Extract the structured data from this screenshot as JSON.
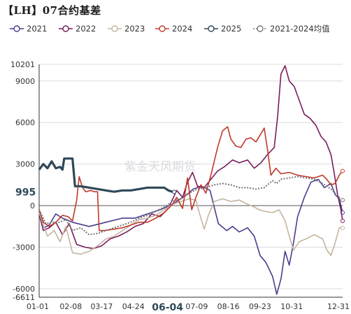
{
  "chart_data": {
    "type": "line",
    "title": "【LH】07合约基差",
    "watermark": "紫金天风期货",
    "ylim": [
      -6611,
      10201
    ],
    "y_ticks": [
      10201,
      9000,
      6000,
      3000,
      0,
      -3000,
      -6000,
      -6611
    ],
    "y_tick_labels": [
      "10201",
      "9000",
      "6000",
      "3000",
      "0",
      "-3000",
      "-6000",
      "-6611"
    ],
    "highlight_y_label": "995",
    "highlight_y_value": 995,
    "x_ticks": [
      0,
      38,
      75,
      113,
      154,
      189,
      227,
      265,
      303,
      364
    ],
    "x_tick_labels": [
      "01-01",
      "02-08",
      "03-17",
      "04-24",
      "06-04",
      "07-09",
      "08-16",
      "09-23",
      "10-31",
      "12-31"
    ],
    "x_unit": "day of year",
    "highlight_x_label": "06-04",
    "grid": "horizontal",
    "legend_position": "top",
    "series": [
      {
        "name": "2021",
        "color": "#4b3d8f",
        "points": [
          [
            0,
            -400
          ],
          [
            6,
            -1600
          ],
          [
            12,
            -1400
          ],
          [
            20,
            -600
          ],
          [
            28,
            -900
          ],
          [
            40,
            -1200
          ],
          [
            60,
            -1500
          ],
          [
            80,
            -1200
          ],
          [
            100,
            -900
          ],
          [
            115,
            -900
          ],
          [
            130,
            -600
          ],
          [
            145,
            -300
          ],
          [
            160,
            100
          ],
          [
            175,
            700
          ],
          [
            185,
            1200
          ],
          [
            195,
            1400
          ],
          [
            205,
            1100
          ],
          [
            215,
            -1300
          ],
          [
            225,
            -1800
          ],
          [
            232,
            -1500
          ],
          [
            240,
            -1900
          ],
          [
            250,
            -1600
          ],
          [
            258,
            -2200
          ],
          [
            265,
            -3600
          ],
          [
            272,
            -4100
          ],
          [
            280,
            -5100
          ],
          [
            285,
            -6400
          ],
          [
            290,
            -5300
          ],
          [
            295,
            -3300
          ],
          [
            300,
            -4300
          ],
          [
            305,
            -2700
          ],
          [
            310,
            -800
          ],
          [
            318,
            600
          ],
          [
            326,
            1700
          ],
          [
            335,
            1900
          ],
          [
            342,
            1300
          ],
          [
            350,
            1600
          ],
          [
            355,
            800
          ],
          [
            360,
            500
          ],
          [
            364,
            -500
          ]
        ]
      },
      {
        "name": "2022",
        "color": "#7a1c5c",
        "points": [
          [
            0,
            -600
          ],
          [
            5,
            -1800
          ],
          [
            12,
            -1600
          ],
          [
            20,
            -1200
          ],
          [
            28,
            -2100
          ],
          [
            36,
            -1300
          ],
          [
            45,
            -2800
          ],
          [
            55,
            -3000
          ],
          [
            65,
            -3100
          ],
          [
            75,
            -2900
          ],
          [
            85,
            -2400
          ],
          [
            95,
            -2200
          ],
          [
            105,
            -1900
          ],
          [
            115,
            -1500
          ],
          [
            125,
            -1300
          ],
          [
            135,
            -600
          ],
          [
            145,
            -800
          ],
          [
            155,
            -200
          ],
          [
            165,
            1100
          ],
          [
            172,
            600
          ],
          [
            178,
            1700
          ],
          [
            184,
            2400
          ],
          [
            190,
            1400
          ],
          [
            198,
            1300
          ],
          [
            206,
            1900
          ],
          [
            214,
            2500
          ],
          [
            222,
            2800
          ],
          [
            232,
            3300
          ],
          [
            240,
            3100
          ],
          [
            250,
            3300
          ],
          [
            258,
            2700
          ],
          [
            266,
            3100
          ],
          [
            274,
            3700
          ],
          [
            282,
            4200
          ],
          [
            286,
            6400
          ],
          [
            290,
            9500
          ],
          [
            295,
            10100
          ],
          [
            300,
            9000
          ],
          [
            306,
            8600
          ],
          [
            312,
            7600
          ],
          [
            318,
            6600
          ],
          [
            325,
            6300
          ],
          [
            332,
            5800
          ],
          [
            338,
            5000
          ],
          [
            344,
            4600
          ],
          [
            350,
            3700
          ],
          [
            354,
            2300
          ],
          [
            358,
            800
          ],
          [
            362,
            -300
          ],
          [
            364,
            -1100
          ]
        ]
      },
      {
        "name": "2023",
        "color": "#c7b49f",
        "points": [
          [
            0,
            -500
          ],
          [
            5,
            -1400
          ],
          [
            10,
            -2200
          ],
          [
            18,
            -1800
          ],
          [
            25,
            -2600
          ],
          [
            32,
            -1500
          ],
          [
            40,
            -3400
          ],
          [
            50,
            -3500
          ],
          [
            60,
            -3300
          ],
          [
            70,
            -2900
          ],
          [
            80,
            -2400
          ],
          [
            90,
            -2200
          ],
          [
            100,
            -1800
          ],
          [
            110,
            -1400
          ],
          [
            120,
            -1000
          ],
          [
            130,
            -900
          ],
          [
            140,
            -700
          ],
          [
            150,
            -300
          ],
          [
            160,
            100
          ],
          [
            170,
            300
          ],
          [
            180,
            500
          ],
          [
            188,
            400
          ],
          [
            192,
            -500
          ],
          [
            198,
            -1700
          ],
          [
            203,
            -700
          ],
          [
            210,
            300
          ],
          [
            220,
            500
          ],
          [
            230,
            300
          ],
          [
            240,
            400
          ],
          [
            250,
            100
          ],
          [
            258,
            -100
          ],
          [
            264,
            -300
          ],
          [
            270,
            -400
          ],
          [
            280,
            -500
          ],
          [
            288,
            -300
          ],
          [
            295,
            -1100
          ],
          [
            300,
            -2200
          ],
          [
            305,
            -3200
          ],
          [
            312,
            -2600
          ],
          [
            320,
            -2400
          ],
          [
            330,
            -2100
          ],
          [
            340,
            -2400
          ],
          [
            345,
            -3200
          ],
          [
            350,
            -3600
          ],
          [
            355,
            -2700
          ],
          [
            360,
            -1600
          ],
          [
            364,
            -1600
          ]
        ]
      },
      {
        "name": "2024",
        "color": "#c0392b",
        "points": [
          [
            0,
            -300
          ],
          [
            5,
            -1200
          ],
          [
            12,
            -1500
          ],
          [
            20,
            -1200
          ],
          [
            28,
            -700
          ],
          [
            35,
            -800
          ],
          [
            40,
            -1100
          ],
          [
            45,
            400
          ],
          [
            48,
            2100
          ],
          [
            52,
            1300
          ],
          [
            56,
            1000
          ],
          [
            62,
            1100
          ],
          [
            66,
            1000
          ],
          [
            70,
            1000
          ],
          [
            72,
            -1800
          ],
          [
            78,
            -1800
          ],
          [
            90,
            -1700
          ],
          [
            100,
            -1600
          ],
          [
            110,
            -1400
          ],
          [
            120,
            -1200
          ],
          [
            130,
            -1200
          ],
          [
            140,
            -900
          ],
          [
            150,
            -500
          ],
          [
            160,
            100
          ],
          [
            165,
            600
          ],
          [
            172,
            -200
          ],
          [
            178,
            2000
          ],
          [
            183,
            -300
          ],
          [
            188,
            600
          ],
          [
            194,
            1500
          ],
          [
            200,
            900
          ],
          [
            206,
            2200
          ],
          [
            214,
            4200
          ],
          [
            220,
            5400
          ],
          [
            226,
            5700
          ],
          [
            230,
            4800
          ],
          [
            236,
            4300
          ],
          [
            242,
            4200
          ],
          [
            248,
            4800
          ],
          [
            254,
            4900
          ],
          [
            260,
            4600
          ],
          [
            266,
            5200
          ],
          [
            270,
            5600
          ],
          [
            274,
            4000
          ],
          [
            278,
            2200
          ],
          [
            284,
            2700
          ],
          [
            290,
            2300
          ],
          [
            300,
            2400
          ],
          [
            310,
            2200
          ],
          [
            320,
            2100
          ],
          [
            330,
            2000
          ],
          [
            340,
            2200
          ],
          [
            345,
            1900
          ],
          [
            350,
            1500
          ],
          [
            355,
            1600
          ],
          [
            360,
            2200
          ],
          [
            364,
            2500
          ]
        ]
      },
      {
        "name": "2025",
        "color": "#2f4858",
        "points": [
          [
            0,
            2600
          ],
          [
            5,
            3000
          ],
          [
            10,
            2700
          ],
          [
            15,
            3200
          ],
          [
            20,
            2700
          ],
          [
            25,
            2800
          ],
          [
            28,
            2600
          ],
          [
            30,
            3400
          ],
          [
            36,
            3400
          ],
          [
            40,
            3400
          ],
          [
            43,
            1400
          ],
          [
            50,
            1400
          ],
          [
            60,
            1300
          ],
          [
            70,
            1200
          ],
          [
            80,
            1100
          ],
          [
            90,
            1000
          ],
          [
            100,
            1100
          ],
          [
            110,
            1100
          ],
          [
            120,
            1200
          ],
          [
            130,
            1300
          ],
          [
            140,
            1300
          ],
          [
            150,
            1300
          ],
          [
            155,
            1100
          ],
          [
            160,
            1000
          ],
          [
            162,
            995
          ]
        ]
      },
      {
        "name": "2021-2024均值",
        "color": "#777777",
        "dashed": true,
        "points": [
          [
            0,
            -300
          ],
          [
            8,
            -1300
          ],
          [
            16,
            -1200
          ],
          [
            24,
            -1200
          ],
          [
            32,
            -1000
          ],
          [
            40,
            -1800
          ],
          [
            50,
            -1600
          ],
          [
            60,
            -2100
          ],
          [
            70,
            -2000
          ],
          [
            80,
            -1800
          ],
          [
            90,
            -1600
          ],
          [
            100,
            -1400
          ],
          [
            110,
            -1200
          ],
          [
            120,
            -900
          ],
          [
            130,
            -700
          ],
          [
            140,
            -400
          ],
          [
            150,
            -100
          ],
          [
            160,
            300
          ],
          [
            170,
            500
          ],
          [
            180,
            900
          ],
          [
            190,
            1200
          ],
          [
            200,
            1300
          ],
          [
            210,
            1500
          ],
          [
            220,
            1600
          ],
          [
            230,
            1500
          ],
          [
            240,
            1300
          ],
          [
            250,
            1300
          ],
          [
            260,
            1200
          ],
          [
            270,
            1300
          ],
          [
            280,
            1800
          ],
          [
            285,
            1600
          ],
          [
            290,
            1900
          ],
          [
            300,
            2000
          ],
          [
            310,
            2100
          ],
          [
            320,
            2000
          ],
          [
            330,
            1900
          ],
          [
            340,
            1600
          ],
          [
            350,
            1200
          ],
          [
            358,
            700
          ],
          [
            364,
            400
          ]
        ]
      }
    ]
  }
}
